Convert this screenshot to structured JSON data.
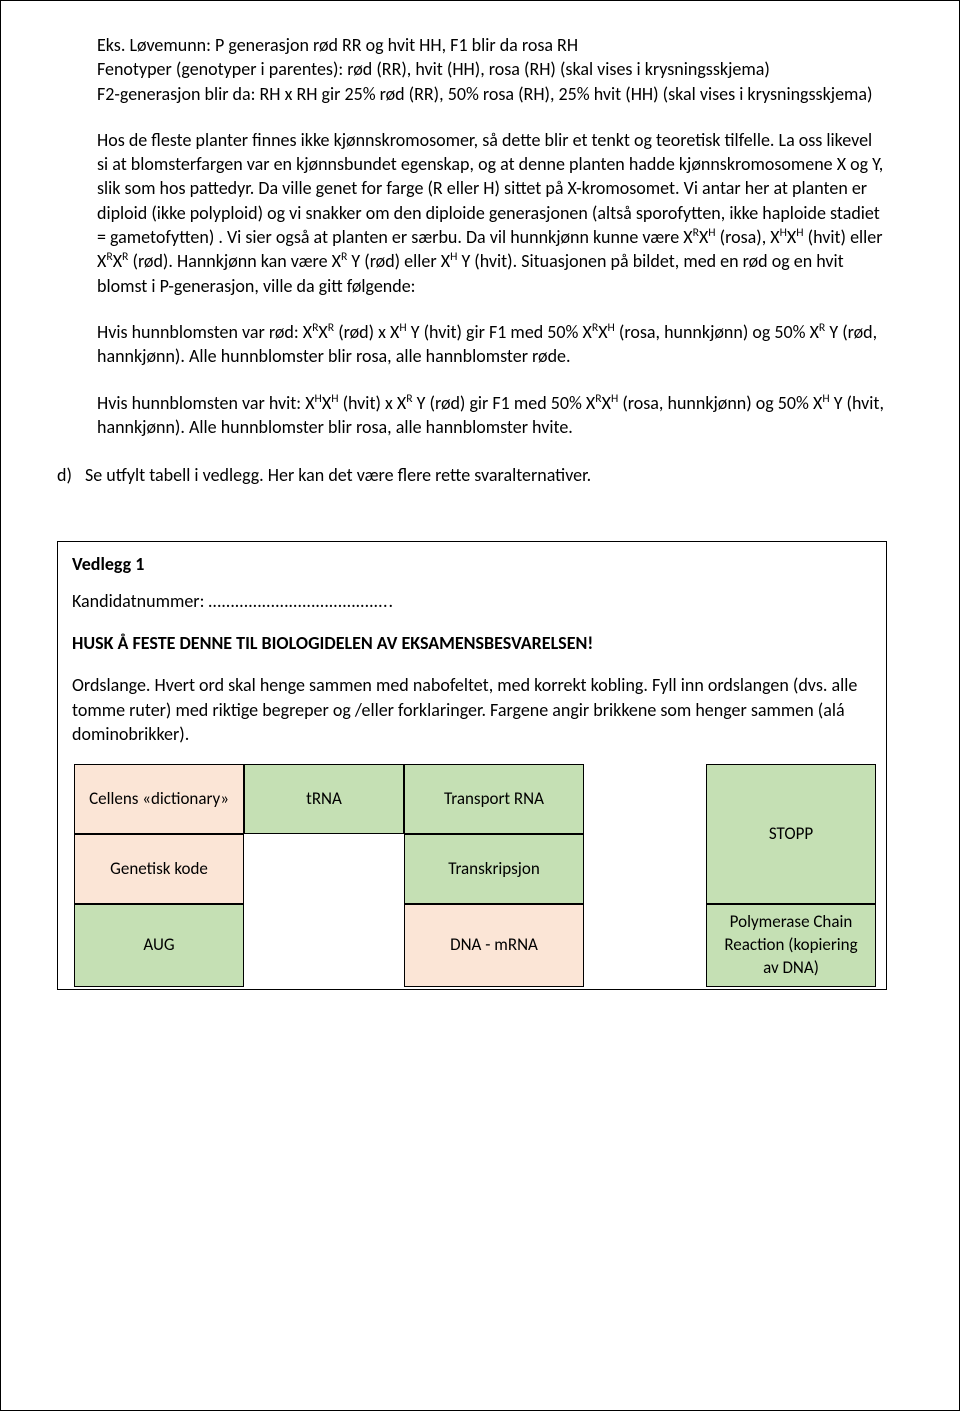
{
  "colors": {
    "peach": "#fbe5d6",
    "green": "#c5e0b4",
    "text": "#000000"
  },
  "body": {
    "p1": "Eks. Løvemunn: P generasjon rød RR og hvit HH, F1 blir da rosa RH",
    "p2": "Fenotyper (genotyper i parentes): rød (RR), hvit (HH), rosa (RH) (skal vises i krysningsskjema)",
    "p3": "F2-generasjon blir da: RH x RH gir 25% rød (RR), 50% rosa (RH), 25% hvit (HH) (skal vises i krysningsskjema)",
    "p4": "Hos de fleste planter finnes ikke kjønnskromosomer, så dette blir et tenkt og teoretisk tilfelle. La oss likevel si at blomsterfargen var en kjønnsbundet egenskap, og at denne planten hadde kjønnskromosomene X og Y, slik som hos pattedyr. Da ville genet for farge (R eller H) sittet på X-kromosomet. Vi antar her at planten er diploid (ikke polyploid) og vi snakker om den diploide generasjonen (altså sporofytten, ikke haploide stadiet = gametofytten) . Vi sier også at planten er særbu. Da vil hunnkjønn kunne være X",
    "p4_after": " (rosa), X",
    "p4_after2": " (hvit) eller X",
    "p4_after3": " (rød). Hannkjønn kan være X",
    "p4_after4": "Y (rød) eller X",
    "p4_after5": "Y (hvit). Situasjonen på bildet, med en rød og en hvit blomst i P-generasjon, ville da gitt følgende:",
    "p5a": "Hvis hunnblomsten var rød: X",
    "p5b": " (rød) x X",
    "p5c": "Y (hvit) gir F1 med 50% X",
    "p5d": " (rosa, hunnkjønn) og 50% X",
    "p5e": "Y (rød, hannkjønn). Alle hunnblomster blir rosa, alle hannblomster røde.",
    "p6a": "Hvis hunnblomsten var hvit: X",
    "p6b": " (hvit) x X",
    "p6c": "Y (rød) gir F1 med 50% X",
    "p6d": " (rosa, hunnkjønn) og 50% X",
    "p6e": "Y (hvit, hannkjønn). Alle hunnblomster blir rosa, alle hannblomster hvite.",
    "d_label": "d)",
    "d_text": "Se utfylt tabell i vedlegg. Her kan det være flere rette svaralternativer."
  },
  "sup": {
    "R": "R",
    "H": "H",
    "RX": "R"
  },
  "vedlegg": {
    "title": "Vedlegg 1",
    "kandidat_label": "Kandidatnummer: ",
    "kandidat_dots": "…………………………………..",
    "husk": "HUSK Å FESTE DENNE TIL BIOLOGIDELEN AV EKSAMENSBESVARELSEN!",
    "ordslange": "Ordslange. Hvert ord skal henge sammen med nabofeltet, med korrekt kobling. Fyll inn ordslangen (dvs. alle tomme ruter) med riktige begreper og /eller forklaringer. Fargene angir brikkene som henger sammen (alá dominobrikker)."
  },
  "cells": {
    "c1": "Cellens «dictionary»",
    "c2": "tRNA",
    "c3": "Transport RNA",
    "c4": "STOPP",
    "c5": "Genetisk kode",
    "c6": "Transkripsjon",
    "c7": "AUG",
    "c8": "DNA - mRNA",
    "c9": "Polymerase Chain Reaction (kopiering av DNA)"
  }
}
